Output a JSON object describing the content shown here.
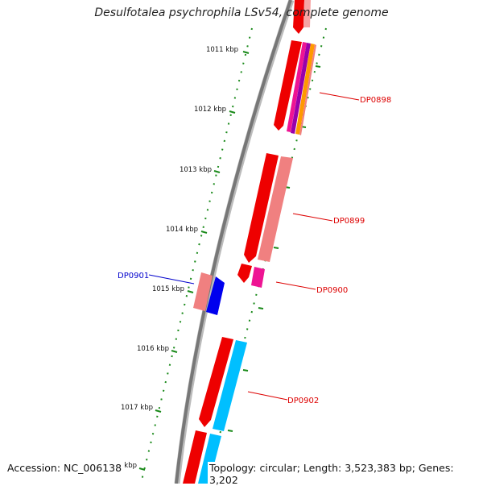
{
  "title": "Desulfotalea psychrophila LSv54, complete genome",
  "footer": {
    "accession": "Accession: NC_006138",
    "summary": "Topology: circular; Length: 3,523,383 bp; Genes: 3,202"
  },
  "scale": {
    "unit": "kbp",
    "labels": [
      "1011 kbp",
      "1012 kbp",
      "1013 kbp",
      "1014 kbp",
      "1015 kbp",
      "1016 kbp",
      "1017 kbp",
      "1018 kbp"
    ]
  },
  "colors": {
    "backbone": "#808080",
    "tick": "#1a8a1a",
    "gene_red": "#ee0000",
    "gene_pink": "#f08080",
    "gene_magenta": "#ee1493",
    "gene_blue": "#0000ee",
    "gene_cyan": "#00bfff",
    "gene_orange": "#ff9900",
    "label_red": "#dd0000",
    "label_blue": "#0000cc"
  },
  "genes": [
    {
      "id": "DP0898",
      "strand": "+",
      "label_color": "red"
    },
    {
      "id": "DP0899",
      "strand": "+",
      "label_color": "red"
    },
    {
      "id": "DP0900",
      "strand": "+",
      "label_color": "red"
    },
    {
      "id": "DP0901",
      "strand": "-",
      "label_color": "blue"
    },
    {
      "id": "DP0902",
      "strand": "+",
      "label_color": "red"
    }
  ]
}
